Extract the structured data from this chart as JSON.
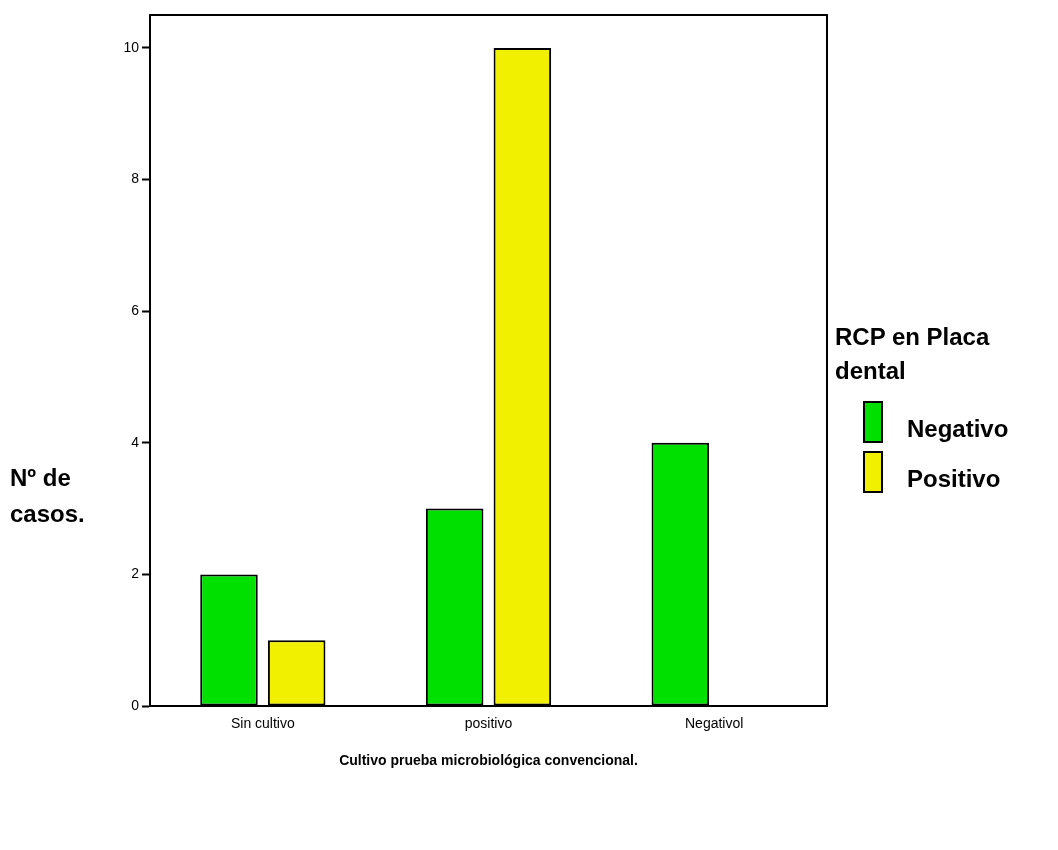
{
  "chart_data": {
    "type": "bar",
    "xlabel": "Cultivo prueba microbiológica convencional.",
    "ylabel": "Nº de casos.",
    "legend_title": "RCP en Placa dental",
    "categories": [
      "Sin cultivo",
      "positivo",
      "Negativol"
    ],
    "series": [
      {
        "name": "Negativo",
        "color": "#00e000",
        "values": [
          2,
          3,
          4
        ]
      },
      {
        "name": "Positivo",
        "color": "#f0f000",
        "values": [
          1,
          10,
          0
        ]
      }
    ],
    "ylim": [
      0,
      10.5
    ],
    "yticks": [
      0,
      2,
      4,
      6,
      8,
      10
    ],
    "grid": false,
    "legend": "right"
  }
}
